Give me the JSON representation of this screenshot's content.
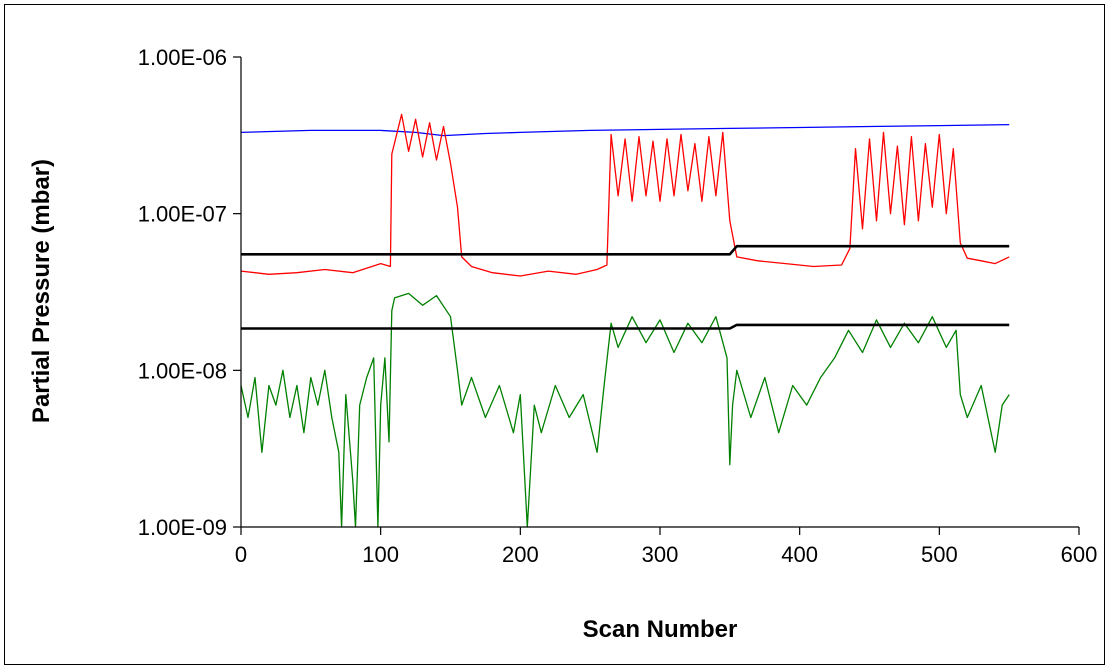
{
  "chart_data": {
    "type": "line",
    "xlabel": "Scan Number",
    "ylabel": "Partial Pressure (mbar)",
    "y_scale": "log",
    "xlim": [
      0,
      600
    ],
    "ylim": [
      1e-09,
      1e-06
    ],
    "x_ticks": [
      0,
      100,
      200,
      300,
      400,
      500,
      600
    ],
    "x_tick_labels": [
      "0",
      "100",
      "200",
      "300",
      "400",
      "500",
      "600"
    ],
    "y_ticks": [
      1e-09,
      1e-08,
      1e-07,
      1e-06
    ],
    "y_tick_labels": [
      "1.00E-09",
      "1.00E-08",
      "1.00E-07",
      "1.00E-06"
    ],
    "grid": false,
    "legend": "none",
    "series": [
      {
        "color": "#0000ff",
        "x": [
          0,
          25,
          50,
          75,
          100,
          125,
          145,
          175,
          200,
          250,
          300,
          350,
          400,
          450,
          500,
          550
        ],
        "y": [
          3.3e-07,
          3.35e-07,
          3.4e-07,
          3.4e-07,
          3.4e-07,
          3.3e-07,
          3.15e-07,
          3.25e-07,
          3.3e-07,
          3.4e-07,
          3.45e-07,
          3.5e-07,
          3.55e-07,
          3.6e-07,
          3.65e-07,
          3.7e-07
        ]
      },
      {
        "color": "#ff0000",
        "x": [
          0,
          20,
          40,
          60,
          80,
          100,
          107,
          108,
          115,
          120,
          125,
          130,
          135,
          140,
          145,
          150,
          155,
          158,
          165,
          180,
          200,
          220,
          240,
          255,
          262,
          265,
          270,
          275,
          280,
          285,
          290,
          295,
          300,
          305,
          310,
          315,
          320,
          325,
          330,
          335,
          340,
          345,
          350,
          355,
          370,
          390,
          410,
          430,
          436,
          440,
          445,
          450,
          455,
          460,
          465,
          470,
          475,
          480,
          485,
          490,
          495,
          500,
          505,
          510,
          515,
          520,
          530,
          540,
          550
        ],
        "y": [
          4.3e-08,
          4.1e-08,
          4.2e-08,
          4.4e-08,
          4.2e-08,
          4.8e-08,
          4.6e-08,
          2.4e-07,
          4.3e-07,
          2.5e-07,
          4e-07,
          2.3e-07,
          3.8e-07,
          2.2e-07,
          3.6e-07,
          2.1e-07,
          1.1e-07,
          5.3e-08,
          4.6e-08,
          4.2e-08,
          4e-08,
          4.3e-08,
          4.1e-08,
          4.4e-08,
          4.7e-08,
          3.2e-07,
          1.3e-07,
          3e-07,
          1.2e-07,
          3.1e-07,
          1.3e-07,
          2.9e-07,
          1.2e-07,
          3e-07,
          1.3e-07,
          3.2e-07,
          1.4e-07,
          2.8e-07,
          1.2e-07,
          3.1e-07,
          1.3e-07,
          3.3e-07,
          9e-08,
          5.3e-08,
          5e-08,
          4.8e-08,
          4.6e-08,
          4.7e-08,
          6e-08,
          2.6e-07,
          8e-08,
          3e-07,
          9e-08,
          3.3e-07,
          1e-07,
          2.7e-07,
          8.5e-08,
          3.1e-07,
          9e-08,
          2.8e-07,
          1.1e-07,
          3.2e-07,
          1e-07,
          2.6e-07,
          6.5e-08,
          5.2e-08,
          5e-08,
          4.8e-08,
          5.3e-08
        ]
      },
      {
        "color": "#008000",
        "x": [
          0,
          5,
          10,
          15,
          20,
          25,
          30,
          35,
          40,
          45,
          50,
          55,
          60,
          65,
          70,
          72,
          75,
          80,
          82,
          85,
          90,
          95,
          98,
          100,
          103,
          106,
          108,
          110,
          120,
          130,
          140,
          150,
          155,
          158,
          165,
          175,
          185,
          195,
          200,
          205,
          210,
          215,
          225,
          235,
          245,
          255,
          260,
          265,
          270,
          280,
          290,
          300,
          310,
          320,
          330,
          340,
          348,
          350,
          352,
          355,
          365,
          375,
          385,
          395,
          405,
          415,
          425,
          435,
          445,
          455,
          465,
          475,
          485,
          495,
          505,
          512,
          515,
          520,
          530,
          540,
          545,
          550
        ],
        "y": [
          8e-09,
          5e-09,
          9e-09,
          3e-09,
          8e-09,
          6e-09,
          1e-08,
          5e-09,
          8e-09,
          4e-09,
          9e-09,
          6e-09,
          1e-08,
          5e-09,
          3e-09,
          1e-09,
          7e-09,
          2e-09,
          1e-09,
          6e-09,
          9e-09,
          1.2e-08,
          1e-09,
          6e-09,
          1.2e-08,
          3.5e-09,
          2.4e-08,
          2.9e-08,
          3.1e-08,
          2.6e-08,
          3e-08,
          2.2e-08,
          1e-08,
          6e-09,
          9e-09,
          5e-09,
          8e-09,
          4e-09,
          7e-09,
          1e-09,
          6e-09,
          4e-09,
          8e-09,
          5e-09,
          7e-09,
          3e-09,
          8e-09,
          2e-08,
          1.4e-08,
          2.2e-08,
          1.5e-08,
          2.1e-08,
          1.3e-08,
          2e-08,
          1.5e-08,
          2.2e-08,
          1.2e-08,
          2.5e-09,
          6e-09,
          1e-08,
          5e-09,
          9e-09,
          4e-09,
          8e-09,
          6e-09,
          9e-09,
          1.2e-08,
          1.8e-08,
          1.3e-08,
          2.1e-08,
          1.4e-08,
          2e-08,
          1.5e-08,
          2.2e-08,
          1.4e-08,
          1.8e-08,
          7e-09,
          5e-09,
          8e-09,
          3e-09,
          6e-09,
          7e-09
        ]
      },
      {
        "color": "#000000",
        "x": [
          0,
          350,
          355,
          550
        ],
        "y": [
          5.5e-08,
          5.5e-08,
          6.2e-08,
          6.2e-08
        ]
      },
      {
        "color": "#000000",
        "x": [
          0,
          350,
          355,
          550
        ],
        "y": [
          1.85e-08,
          1.85e-08,
          1.95e-08,
          1.95e-08
        ]
      }
    ]
  }
}
